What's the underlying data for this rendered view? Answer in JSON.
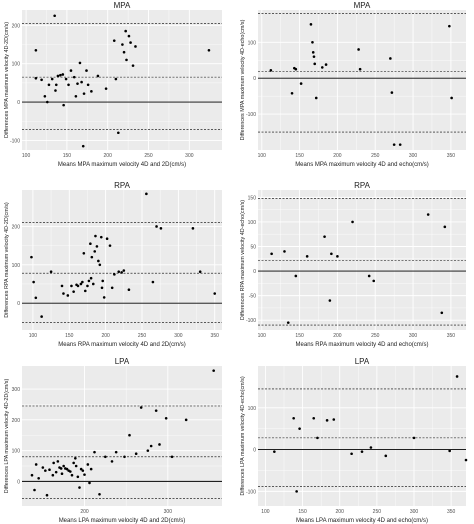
{
  "figure": {
    "background": "#ffffff",
    "panel_bg": "#ebebeb",
    "grid_color": "#ffffff",
    "point_color": "#000000",
    "line_color": "#000000"
  },
  "chart_data": [
    {
      "type": "scatter",
      "title": "MPA",
      "xlabel": "Means MPA maximum velocity 4D and 2D(cm/s)",
      "ylabel": "Differences MPA maximum velocity 4D-2D(cm/s)",
      "xlim": [
        95,
        340
      ],
      "ylim": [
        -125,
        240
      ],
      "xticks": [
        100,
        150,
        200,
        250,
        300
      ],
      "yticks": [
        -100,
        0,
        100,
        200
      ],
      "mean_line": 0,
      "loa_upper": 205,
      "loa_lower": -72,
      "ref_line": 65,
      "points": [
        [
          112,
          135
        ],
        [
          112,
          62
        ],
        [
          119,
          58
        ],
        [
          123,
          15
        ],
        [
          126,
          0
        ],
        [
          128,
          45
        ],
        [
          132,
          60
        ],
        [
          135,
          225
        ],
        [
          136,
          30
        ],
        [
          137,
          45
        ],
        [
          139,
          68
        ],
        [
          142,
          70
        ],
        [
          145,
          72
        ],
        [
          146,
          -8
        ],
        [
          149,
          60
        ],
        [
          152,
          45
        ],
        [
          155,
          82
        ],
        [
          159,
          65
        ],
        [
          161,
          15
        ],
        [
          163,
          48
        ],
        [
          166,
          102
        ],
        [
          168,
          52
        ],
        [
          170,
          -115
        ],
        [
          171,
          22
        ],
        [
          174,
          82
        ],
        [
          176,
          45
        ],
        [
          180,
          28
        ],
        [
          188,
          68
        ],
        [
          198,
          35
        ],
        [
          208,
          160
        ],
        [
          210,
          60
        ],
        [
          213,
          -80
        ],
        [
          218,
          150
        ],
        [
          220,
          130
        ],
        [
          222,
          185
        ],
        [
          223,
          110
        ],
        [
          226,
          172
        ],
        [
          228,
          155
        ],
        [
          231,
          95
        ],
        [
          234,
          145
        ],
        [
          324,
          135
        ]
      ]
    },
    {
      "type": "scatter",
      "title": "MPA",
      "xlabel": "Means MPA maximum velocity 4D and echo(cm/s)",
      "ylabel": "Differences MPA maximum velocity 4D-echo(cm/s)",
      "xlim": [
        95,
        370
      ],
      "ylim": [
        -200,
        190
      ],
      "xticks": [
        100,
        150,
        200,
        250,
        300,
        350
      ],
      "yticks": [
        -100,
        0,
        100
      ],
      "mean_line": 0,
      "loa_upper": 180,
      "loa_lower": -150,
      "ref_line": 18,
      "points": [
        [
          112,
          22
        ],
        [
          140,
          -42
        ],
        [
          143,
          28
        ],
        [
          145,
          25
        ],
        [
          152,
          -15
        ],
        [
          165,
          150
        ],
        [
          167,
          100
        ],
        [
          168,
          72
        ],
        [
          169,
          60
        ],
        [
          170,
          40
        ],
        [
          172,
          -55
        ],
        [
          180,
          30
        ],
        [
          185,
          38
        ],
        [
          228,
          80
        ],
        [
          230,
          25
        ],
        [
          270,
          55
        ],
        [
          272,
          -40
        ],
        [
          275,
          -185
        ],
        [
          283,
          -185
        ],
        [
          348,
          145
        ],
        [
          351,
          -55
        ]
      ]
    },
    {
      "type": "scatter",
      "title": "RPA",
      "xlabel": "Means RPA maximum velocity 4D and 2D(cm/s)",
      "ylabel": "Differences RPA maximum velocity 4D-2D(cm/s)",
      "xlim": [
        85,
        360
      ],
      "ylim": [
        -70,
        295
      ],
      "xticks": [
        100,
        150,
        200,
        250,
        300,
        350
      ],
      "yticks": [
        0,
        100,
        200
      ],
      "mean_line": 0,
      "loa_upper": 210,
      "loa_lower": -50,
      "ref_line": 78,
      "points": [
        [
          98,
          120
        ],
        [
          101,
          55
        ],
        [
          104,
          14
        ],
        [
          112,
          -35
        ],
        [
          125,
          82
        ],
        [
          140,
          45
        ],
        [
          142,
          25
        ],
        [
          148,
          20
        ],
        [
          153,
          45
        ],
        [
          156,
          30
        ],
        [
          160,
          48
        ],
        [
          162,
          45
        ],
        [
          166,
          50
        ],
        [
          168,
          55
        ],
        [
          170,
          130
        ],
        [
          172,
          32
        ],
        [
          175,
          45
        ],
        [
          177,
          58
        ],
        [
          179,
          155
        ],
        [
          180,
          65
        ],
        [
          181,
          120
        ],
        [
          183,
          50
        ],
        [
          185,
          135
        ],
        [
          186,
          175
        ],
        [
          188,
          148
        ],
        [
          190,
          110
        ],
        [
          192,
          100
        ],
        [
          194,
          172
        ],
        [
          195,
          40
        ],
        [
          196,
          58
        ],
        [
          198,
          15
        ],
        [
          202,
          168
        ],
        [
          206,
          150
        ],
        [
          209,
          40
        ],
        [
          212,
          75
        ],
        [
          218,
          82
        ],
        [
          222,
          80
        ],
        [
          225,
          85
        ],
        [
          232,
          35
        ],
        [
          256,
          285
        ],
        [
          265,
          55
        ],
        [
          270,
          200
        ],
        [
          276,
          195
        ],
        [
          320,
          195
        ],
        [
          330,
          82
        ],
        [
          350,
          25
        ]
      ]
    },
    {
      "type": "scatter",
      "title": "RPA",
      "xlabel": "Means RPA maximum velocity 4D and echo(cm/s)",
      "ylabel": "Differences RPA maximum velocity 4D-echo(cm/s)",
      "xlim": [
        95,
        370
      ],
      "ylim": [
        -120,
        165
      ],
      "xticks": [
        100,
        150,
        200,
        250,
        300,
        350
      ],
      "yticks": [
        -100,
        -50,
        0,
        50,
        100,
        150
      ],
      "mean_line": 0,
      "loa_upper": 148,
      "loa_lower": -110,
      "ref_line": 22,
      "points": [
        [
          113,
          35
        ],
        [
          130,
          40
        ],
        [
          135,
          -105
        ],
        [
          145,
          -10
        ],
        [
          160,
          30
        ],
        [
          183,
          70
        ],
        [
          190,
          -60
        ],
        [
          192,
          35
        ],
        [
          200,
          30
        ],
        [
          220,
          100
        ],
        [
          242,
          -10
        ],
        [
          248,
          -20
        ],
        [
          320,
          115
        ],
        [
          338,
          -85
        ],
        [
          342,
          90
        ]
      ]
    },
    {
      "type": "scatter",
      "title": "LPA",
      "xlabel": "Means LPA maximum velocity 4D and 2D(cm/s)",
      "ylabel": "Differences LPA maximum velocity 4D-2D(cm/s)",
      "xlim": [
        125,
        365
      ],
      "ylim": [
        -80,
        375
      ],
      "xticks": [
        200,
        300
      ],
      "yticks": [
        0,
        100,
        200,
        300
      ],
      "mean_line": 0,
      "loa_upper": 245,
      "loa_lower": -55,
      "ref_line": 80,
      "points": [
        [
          137,
          20
        ],
        [
          140,
          -28
        ],
        [
          142,
          55
        ],
        [
          145,
          10
        ],
        [
          150,
          45
        ],
        [
          153,
          35
        ],
        [
          155,
          -45
        ],
        [
          158,
          38
        ],
        [
          162,
          20
        ],
        [
          163,
          60
        ],
        [
          166,
          30
        ],
        [
          168,
          65
        ],
        [
          170,
          45
        ],
        [
          172,
          42
        ],
        [
          173,
          25
        ],
        [
          175,
          50
        ],
        [
          177,
          42
        ],
        [
          179,
          40
        ],
        [
          181,
          35
        ],
        [
          183,
          32
        ],
        [
          185,
          20
        ],
        [
          187,
          60
        ],
        [
          189,
          75
        ],
        [
          190,
          50
        ],
        [
          192,
          15
        ],
        [
          194,
          -20
        ],
        [
          196,
          40
        ],
        [
          198,
          35
        ],
        [
          200,
          22
        ],
        [
          204,
          55
        ],
        [
          206,
          -5
        ],
        [
          208,
          40
        ],
        [
          212,
          95
        ],
        [
          218,
          -42
        ],
        [
          225,
          80
        ],
        [
          233,
          65
        ],
        [
          238,
          95
        ],
        [
          248,
          80
        ],
        [
          254,
          150
        ],
        [
          262,
          90
        ],
        [
          268,
          240
        ],
        [
          276,
          100
        ],
        [
          280,
          115
        ],
        [
          286,
          230
        ],
        [
          290,
          120
        ],
        [
          298,
          205
        ],
        [
          305,
          80
        ],
        [
          322,
          200
        ],
        [
          355,
          360
        ]
      ]
    },
    {
      "type": "scatter",
      "title": "LPA",
      "xlabel": "Means LPA maximum velocity 4D and echo(cm/s)",
      "ylabel": "Differences LPA maximum velocity 4D-echo(cm/s)",
      "xlim": [
        90,
        370
      ],
      "ylim": [
        -135,
        200
      ],
      "xticks": [
        100,
        150,
        200,
        250,
        300,
        350
      ],
      "yticks": [
        -100,
        0,
        100
      ],
      "mean_line": 0,
      "loa_upper": 145,
      "loa_lower": -88,
      "ref_line": 28,
      "points": [
        [
          112,
          -5
        ],
        [
          138,
          75
        ],
        [
          142,
          -100
        ],
        [
          146,
          50
        ],
        [
          165,
          75
        ],
        [
          170,
          28
        ],
        [
          183,
          70
        ],
        [
          192,
          72
        ],
        [
          216,
          -10
        ],
        [
          230,
          -5
        ],
        [
          242,
          5
        ],
        [
          262,
          -15
        ],
        [
          300,
          28
        ],
        [
          348,
          -3
        ],
        [
          358,
          175
        ],
        [
          370,
          -25
        ]
      ]
    }
  ]
}
